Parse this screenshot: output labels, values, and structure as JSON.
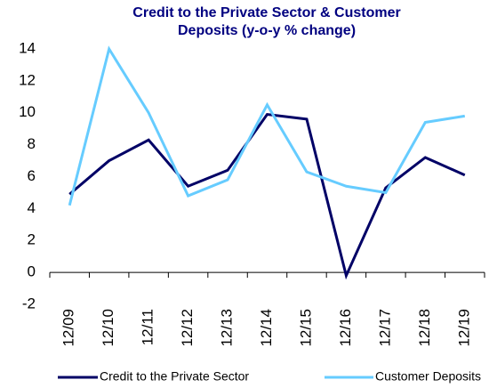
{
  "chart_data": {
    "type": "line",
    "title": [
      "Credit to the Private Sector & Customer",
      "Deposits (y-o-y % change)"
    ],
    "categories": [
      "12/09",
      "12/10",
      "12/11",
      "12/12",
      "12/13",
      "12/14",
      "12/15",
      "12/16",
      "12/17",
      "12/18",
      "12/19"
    ],
    "series": [
      {
        "name": "Credit to the Private Sector",
        "color": "#000066",
        "values": [
          4.9,
          7.0,
          8.3,
          5.4,
          6.4,
          9.9,
          9.6,
          -0.2,
          5.3,
          7.2,
          6.1
        ]
      },
      {
        "name": "Customer Deposits",
        "color": "#66ccff",
        "values": [
          4.2,
          14.0,
          10.0,
          4.8,
          5.8,
          10.5,
          6.3,
          5.4,
          5.0,
          9.4,
          9.8
        ]
      }
    ],
    "ylim": [
      -2,
      14
    ],
    "yticks": [
      -2,
      0,
      2,
      4,
      6,
      8,
      10,
      12,
      14
    ],
    "grid": false,
    "legend": "bottom"
  }
}
